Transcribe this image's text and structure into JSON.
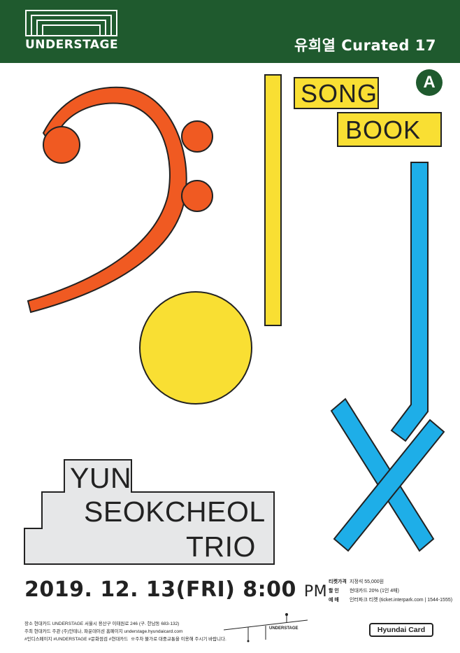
{
  "header": {
    "logo_text": "UNDERSTAGE",
    "curated": "유희열 Curated 17",
    "bg_color": "#1f5a2e"
  },
  "badge": {
    "letter": "A"
  },
  "song_book": {
    "line1": "SONG",
    "line2": "BOOK"
  },
  "title": {
    "line1": "YUN",
    "line2": "SEOKCHEOL",
    "line3": "TRIO"
  },
  "date": {
    "main": "2019. 12. 13(FRI) 8:00",
    "suffix": "PM"
  },
  "ticket": [
    {
      "label": "티켓가격",
      "value": "지정석 55,000원"
    },
    {
      "label": "할 인",
      "value": "현대카드 20% (1인 4매)"
    },
    {
      "label": "예 매",
      "value": "인터파크 티켓 (ticket.interpark.com | 1544-1555)"
    }
  ],
  "footer": {
    "line1": "장소 현대카드 UNDERSTAGE 서울시 용산구 이태원로 246 (구. 한남동 683-132)",
    "line2": "주최 현대카드 주관 (주)안테나, 파운데이션 홈페이지 understage.hyundaicard.com",
    "line3": "#인디스페이지 #UNDERSTAGE #문화점검 #현대카드",
    "note": "※주차 불가로 대중교통을 이용해 주시기 바랍니다."
  },
  "map": {
    "label": "UNDERSTAGE"
  },
  "sponsor": "Hyundai Card",
  "colors": {
    "orange": "#f05a22",
    "yellow": "#f9df33",
    "blue": "#1eaee8",
    "gray": "#e6e7e8",
    "green": "#1f5a2e"
  }
}
